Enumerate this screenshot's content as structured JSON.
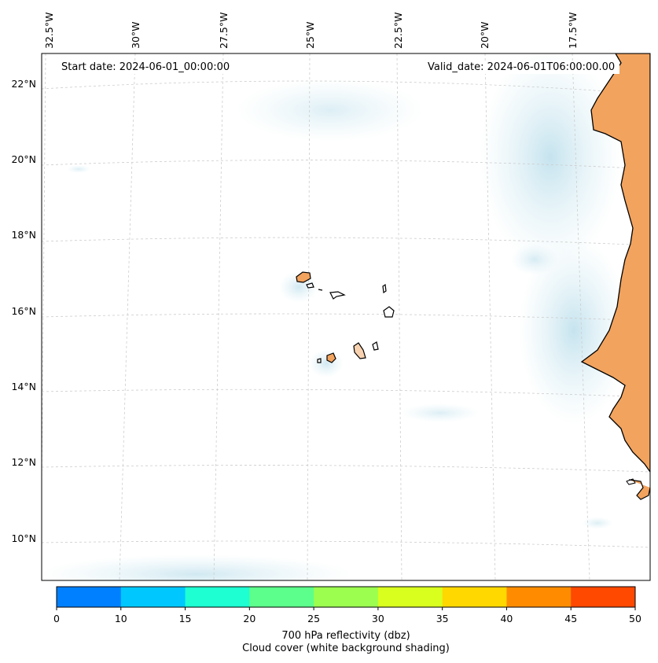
{
  "map": {
    "start_date": "Start date: 2024-06-01_00:00:00",
    "valid_date": "Valid_date: 2024-06-01T06:00:00.00",
    "lon_labels": [
      "32.5°W",
      "30°W",
      "27.5°W",
      "25°W",
      "22.5°W",
      "20°W",
      "17.5°W"
    ],
    "lat_labels": [
      "22°N",
      "20°N",
      "18°N",
      "16°N",
      "14°N",
      "12°N",
      "10°N"
    ],
    "land_color": "#f2a35e",
    "cloud_color": "#cfe8f2"
  },
  "colorbar": {
    "ticks": [
      "0",
      "10",
      "15",
      "20",
      "25",
      "30",
      "35",
      "40",
      "45",
      "50"
    ],
    "colors": [
      "#0080ff",
      "#00c8ff",
      "#1effd2",
      "#5cff8c",
      "#9cff50",
      "#d8ff1e",
      "#ffd800",
      "#ff8c00",
      "#ff4800"
    ],
    "label_line1": "700 hPa reflectivity (dbz)",
    "label_line2": "Cloud cover (white background shading)"
  }
}
